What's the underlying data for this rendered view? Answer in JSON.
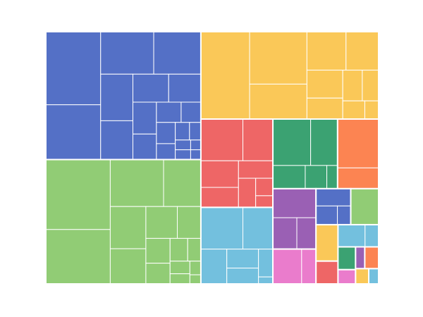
{
  "chart_data": {
    "type": "treemap",
    "groups": [
      {
        "color": "#5470c6",
        "values": [
          80,
          60,
          45,
          40,
          30,
          25,
          20,
          18,
          15,
          12,
          10,
          8,
          8,
          6,
          5,
          4,
          3,
          3,
          2,
          2
        ]
      },
      {
        "color": "#91cc75",
        "values": [
          90,
          70,
          50,
          35,
          30,
          25,
          20,
          15,
          12,
          10,
          8,
          6,
          5,
          4,
          3,
          2
        ]
      },
      {
        "color": "#fac858",
        "values": [
          85,
          60,
          40,
          30,
          25,
          20,
          15,
          12,
          10,
          8,
          5
        ]
      },
      {
        "color": "#ee6666",
        "values": [
          35,
          25,
          20,
          15,
          12,
          10,
          6,
          4
        ]
      },
      {
        "color": "#73c0de",
        "values": [
          35,
          25,
          18,
          12,
          10,
          8,
          2
        ]
      },
      {
        "color": "#3ba272",
        "values": [
          35,
          25,
          15,
          10,
          5
        ]
      },
      {
        "color": "#fc8452",
        "values": [
          40,
          17
        ]
      },
      {
        "color": "#9a60b4",
        "values": [
          25,
          15,
          12
        ]
      },
      {
        "color": "#ea7ccc",
        "values": [
          20,
          10
        ]
      },
      {
        "color": "#5470c6",
        "values": [
          12,
          8,
          5
        ]
      },
      {
        "color": "#91cc75",
        "values": [
          20
        ]
      },
      {
        "color": "#fac858",
        "values": [
          16
        ]
      },
      {
        "color": "#ee6666",
        "values": [
          10
        ]
      },
      {
        "color": "#73c0de",
        "values": [
          12,
          6
        ]
      },
      {
        "color": "#3ba272",
        "values": [
          8
        ]
      },
      {
        "color": "#ea7ccc",
        "values": [
          5
        ]
      },
      {
        "color": "#9a60b4",
        "values": [
          4
        ]
      },
      {
        "color": "#fc8452",
        "values": [
          6
        ]
      },
      {
        "color": "#fac858",
        "values": [
          4
        ]
      },
      {
        "color": "#73c0de",
        "values": [
          3
        ]
      }
    ]
  }
}
